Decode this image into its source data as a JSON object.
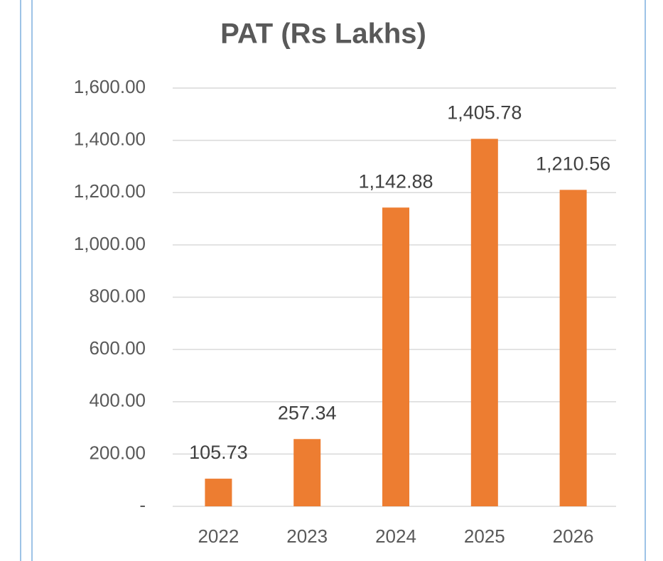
{
  "chart_data": {
    "type": "bar",
    "title": "PAT (Rs Lakhs)",
    "categories": [
      "2022",
      "2023",
      "2024",
      "2025",
      "2026"
    ],
    "values": [
      105.73,
      257.34,
      1142.88,
      1405.78,
      1210.56
    ],
    "value_labels": [
      "105.73",
      "257.34",
      "1,142.88",
      "1,405.78",
      "1,210.56"
    ],
    "color": "#ed7d31",
    "ylim": [
      0,
      1600
    ],
    "yticks": [
      {
        "value": 0,
        "label": "-"
      },
      {
        "value": 200,
        "label": "200.00"
      },
      {
        "value": 400,
        "label": "400.00"
      },
      {
        "value": 600,
        "label": "600.00"
      },
      {
        "value": 800,
        "label": "800.00"
      },
      {
        "value": 1000,
        "label": "1,000.00"
      },
      {
        "value": 1200,
        "label": "1,200.00"
      },
      {
        "value": 1400,
        "label": "1,400.00"
      },
      {
        "value": 1600,
        "label": "1,600.00"
      }
    ],
    "grid": true
  }
}
